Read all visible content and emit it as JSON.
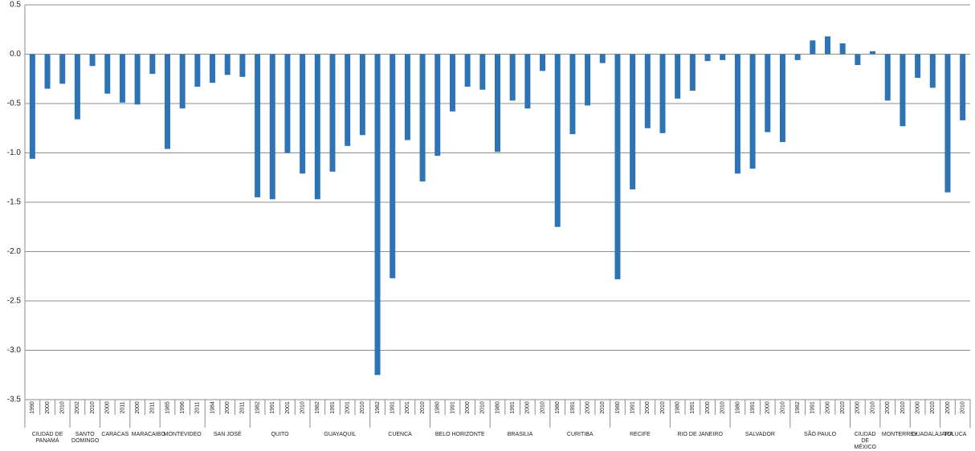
{
  "chart_data": {
    "type": "bar",
    "color": "#2e74b5",
    "grid": true,
    "ylim": [
      -3.5,
      0.5
    ],
    "yticks": [
      0.5,
      {
        "value": 0,
        "label": "0.0"
      },
      -0.5,
      {
        "value": -1,
        "label": "-1.0"
      },
      -1.5,
      {
        "value": -2,
        "label": "-2.0"
      },
      -2.5,
      {
        "value": -3,
        "label": "-3.0"
      },
      -3.5
    ],
    "groups": [
      {
        "name": "CIUDAD DE PANAMÁ",
        "categories": [
          "1990",
          "2000",
          "2010"
        ],
        "values": [
          -1.06,
          -0.35,
          -0.3
        ]
      },
      {
        "name": "SANTO DOMINGO",
        "categories": [
          "2002",
          "2010"
        ],
        "values": [
          -0.66,
          -0.12
        ]
      },
      {
        "name": "CARACAS",
        "categories": [
          "2000",
          "2011"
        ],
        "values": [
          -0.4,
          -0.49
        ]
      },
      {
        "name": "MARACAIBO",
        "categories": [
          "2000",
          "2011"
        ],
        "values": [
          -0.51,
          -0.2
        ]
      },
      {
        "name": "MONTEVIDEO",
        "categories": [
          "1985",
          "1996",
          "2011"
        ],
        "values": [
          -0.96,
          -0.55,
          -0.33
        ]
      },
      {
        "name": "SAN JOSÉ",
        "categories": [
          "1984",
          "2000",
          "2011"
        ],
        "values": [
          -0.29,
          -0.21,
          -0.23
        ]
      },
      {
        "name": "QUITO",
        "categories": [
          "1982",
          "1991",
          "2001",
          "2010"
        ],
        "values": [
          -1.45,
          -1.47,
          -1.0,
          -1.21
        ]
      },
      {
        "name": "GUAYAQUIL",
        "categories": [
          "1982",
          "1991",
          "2001",
          "2010"
        ],
        "values": [
          -1.47,
          -1.19,
          -0.93,
          -0.82
        ]
      },
      {
        "name": "CUENCA",
        "categories": [
          "1982",
          "1991",
          "2001",
          "2010"
        ],
        "values": [
          -3.25,
          -2.27,
          -0.87,
          -1.29
        ]
      },
      {
        "name": "BELO HORIZONTE",
        "categories": [
          "1980",
          "1991",
          "2000",
          "2010"
        ],
        "values": [
          -1.03,
          -0.58,
          -0.33,
          -0.36
        ]
      },
      {
        "name": "BRASILIA",
        "categories": [
          "1980",
          "1991",
          "2000",
          "2010"
        ],
        "values": [
          -0.99,
          -0.47,
          -0.55,
          -0.17
        ]
      },
      {
        "name": "CURITIBA",
        "categories": [
          "1980",
          "1991",
          "2000",
          "2010"
        ],
        "values": [
          -1.75,
          -0.81,
          -0.52,
          -0.09
        ]
      },
      {
        "name": "RECIFE",
        "categories": [
          "1980",
          "1991",
          "2000",
          "2010"
        ],
        "values": [
          -2.28,
          -1.37,
          -0.75,
          -0.8
        ]
      },
      {
        "name": "RIO DE JANEIRO",
        "categories": [
          "1980",
          "1991",
          "2000",
          "2010"
        ],
        "values": [
          -0.45,
          -0.37,
          -0.07,
          -0.06
        ]
      },
      {
        "name": "SALVADOR",
        "categories": [
          "1980",
          "1991",
          "2000",
          "2010"
        ],
        "values": [
          -1.21,
          -1.16,
          -0.79,
          -0.89
        ]
      },
      {
        "name": "SÃO PAULO",
        "categories": [
          "1982",
          "1991",
          "2000",
          "2010"
        ],
        "values": [
          -0.06,
          0.14,
          0.18,
          0.11
        ]
      },
      {
        "name": "CIUDAD DE MÉXICO",
        "categories": [
          "2000",
          "2010"
        ],
        "values": [
          -0.11,
          0.03
        ]
      },
      {
        "name": "MONTERREY",
        "categories": [
          "2000",
          "2010"
        ],
        "values": [
          -0.47,
          -0.73
        ]
      },
      {
        "name": "GUADALAJARA",
        "categories": [
          "2000",
          "2010"
        ],
        "values": [
          -0.24,
          -0.34
        ]
      },
      {
        "name": "TOLUCA",
        "categories": [
          "2000",
          "2010"
        ],
        "values": [
          -1.4,
          -0.67
        ]
      }
    ]
  }
}
